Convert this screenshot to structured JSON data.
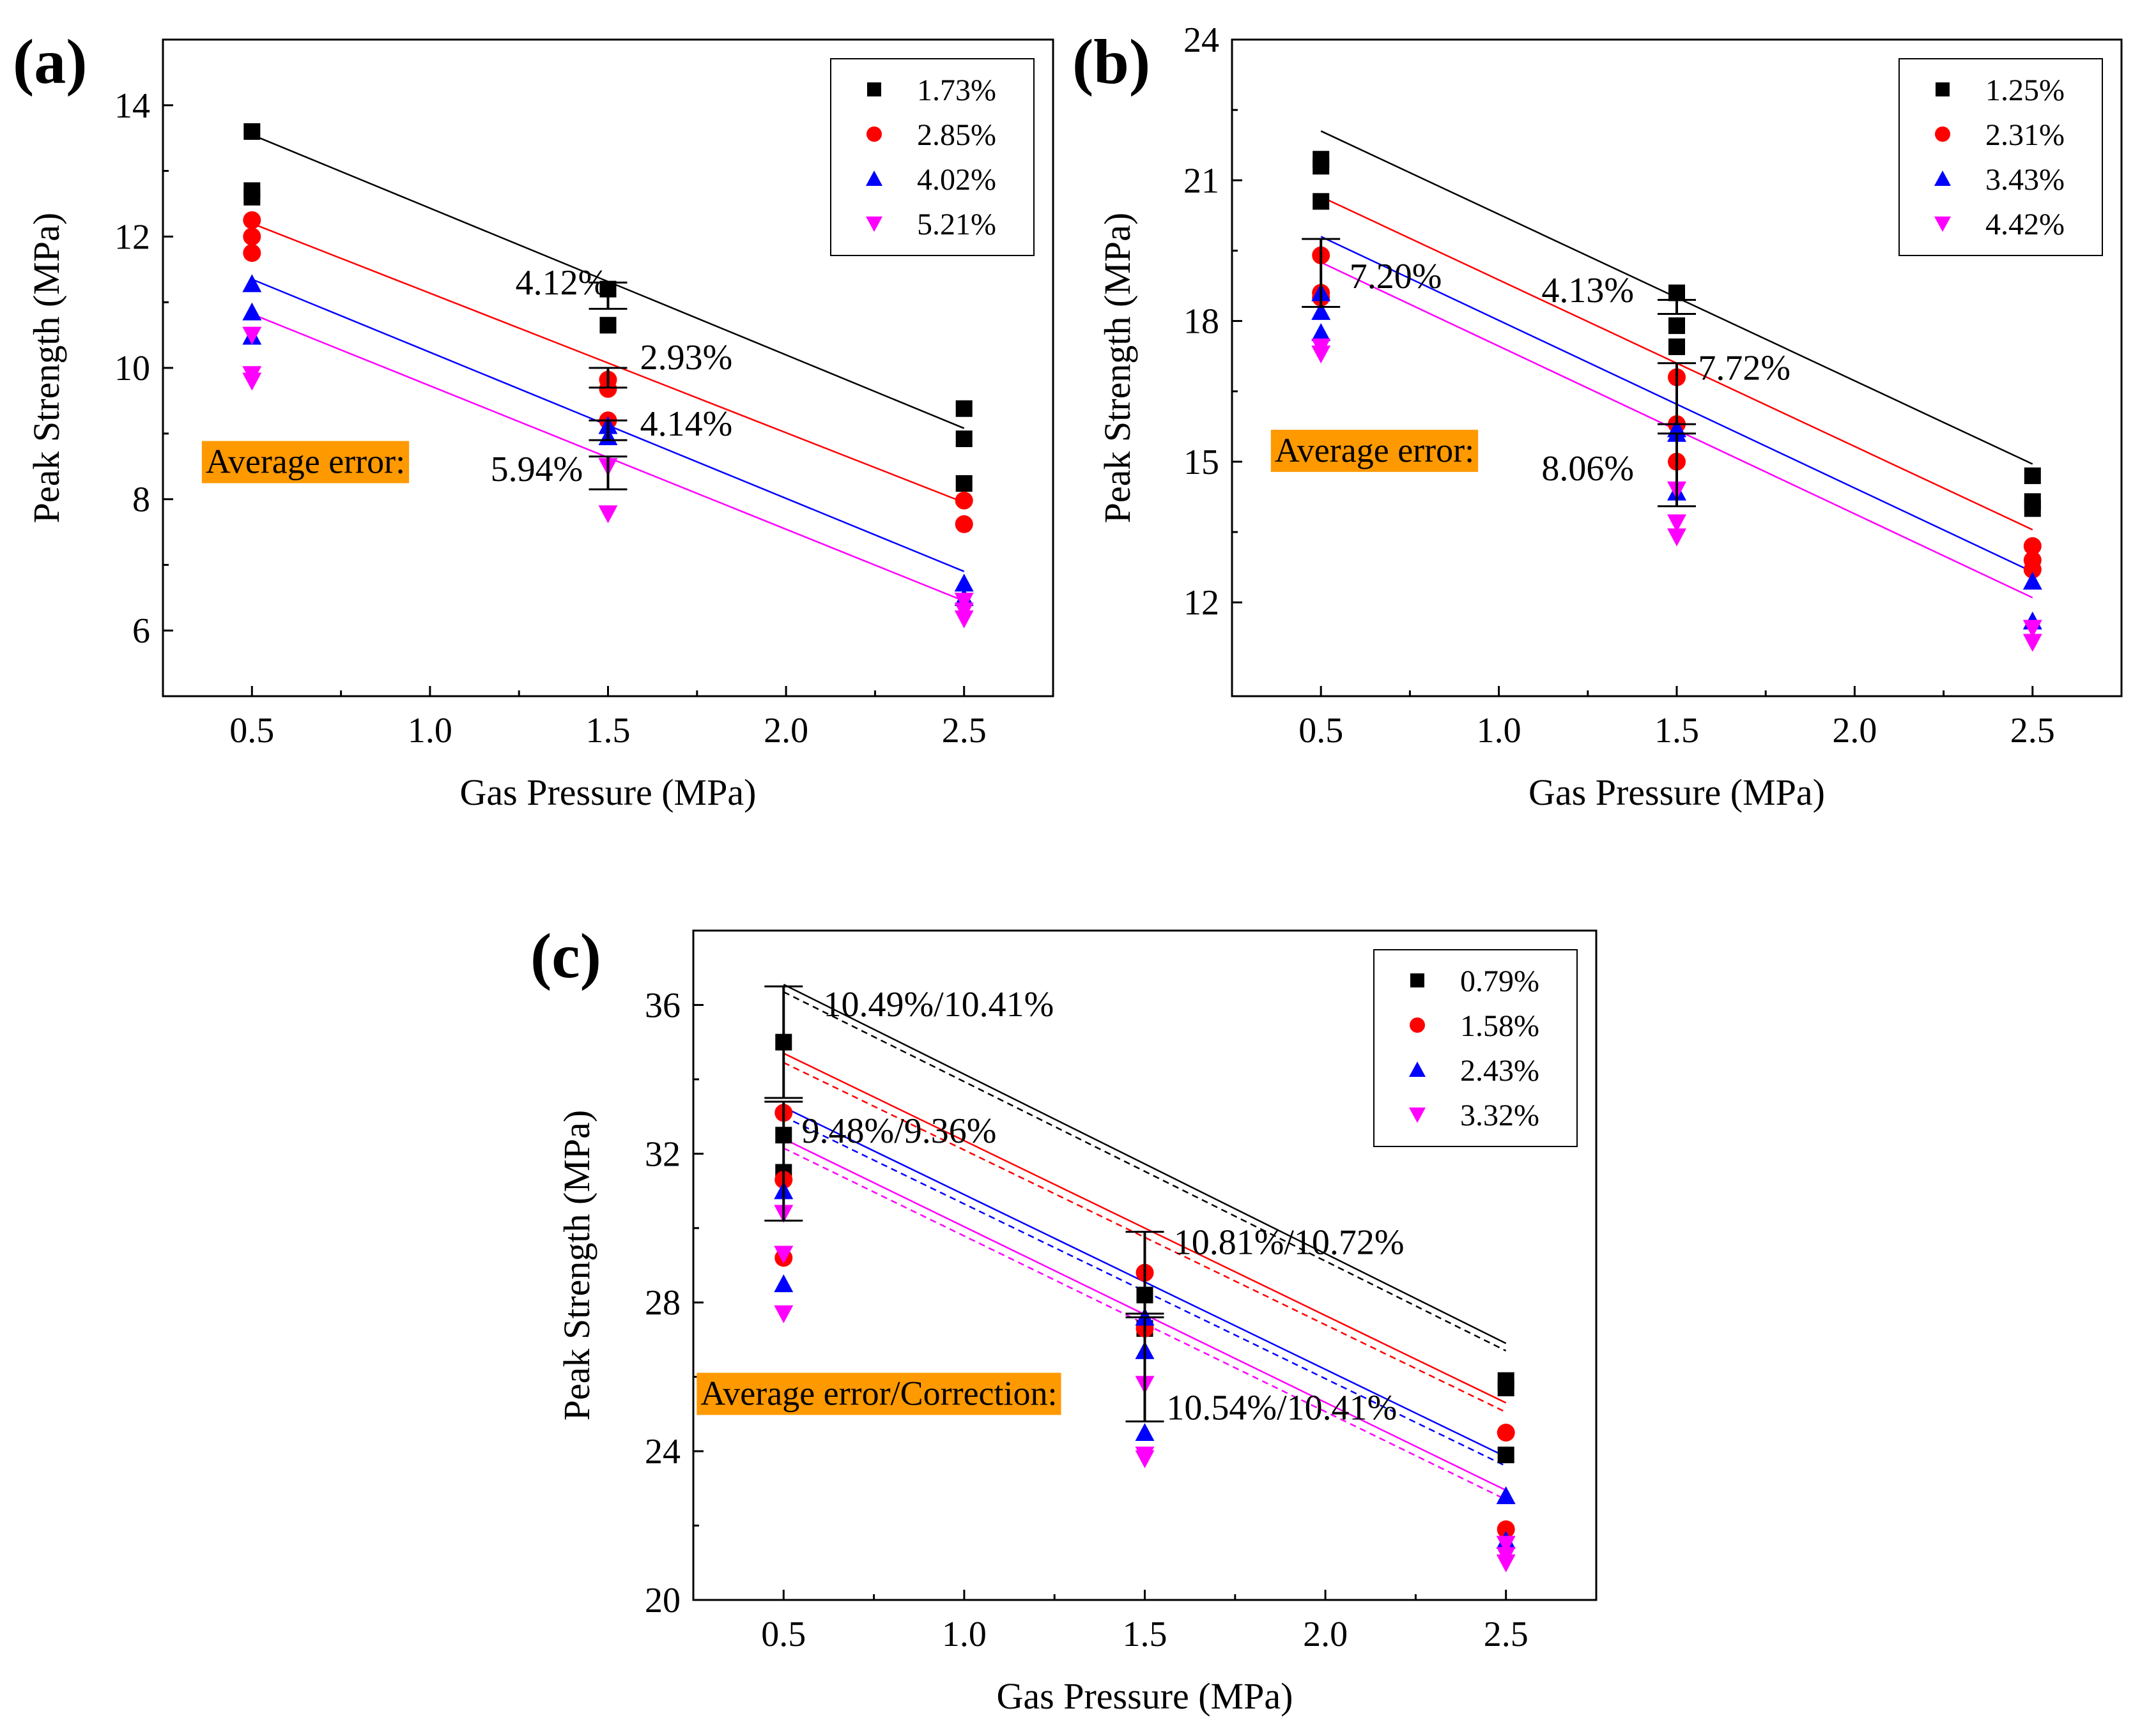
{
  "colors": {
    "black": "#000000",
    "red": "#ff0000",
    "blue": "#0000ff",
    "magenta": "#ff00ff",
    "error_box": "#ff9900",
    "frame": "#000000"
  },
  "chart_data": [
    {
      "panel_label": "(a)",
      "type": "scatter",
      "xlabel": "Gas Pressure (MPa)",
      "ylabel": "Peak Strength (MPa)",
      "xlim": [
        0.25,
        2.75
      ],
      "ylim": [
        5,
        15
      ],
      "xticks": [
        0.5,
        1.0,
        1.5,
        2.0,
        2.5
      ],
      "xtick_labels": [
        "0.5",
        "1.0",
        "1.5",
        "2.0",
        "2.5"
      ],
      "yticks": [
        6,
        8,
        10,
        12,
        14
      ],
      "ytick_labels": [
        "6",
        "8",
        "10",
        "12",
        "14"
      ],
      "legend_position": "top-right",
      "series": [
        {
          "name": "1.73%",
          "marker": "square",
          "color": "#000000",
          "points": [
            [
              0.5,
              13.6
            ],
            [
              0.5,
              12.7
            ],
            [
              0.5,
              12.6
            ],
            [
              1.5,
              11.2
            ],
            [
              1.5,
              10.65
            ],
            [
              2.5,
              9.38
            ],
            [
              2.5,
              8.92
            ],
            [
              2.5,
              8.24
            ]
          ],
          "fit": [
            [
              0.5,
              13.55
            ],
            [
              2.5,
              9.08
            ]
          ]
        },
        {
          "name": "2.85%",
          "marker": "circle",
          "color": "#ff0000",
          "points": [
            [
              0.5,
              12.25
            ],
            [
              0.5,
              12.0
            ],
            [
              0.5,
              11.75
            ],
            [
              1.5,
              9.82
            ],
            [
              1.5,
              9.68
            ],
            [
              1.5,
              9.2
            ],
            [
              2.5,
              7.98
            ],
            [
              2.5,
              7.62
            ]
          ],
          "fit": [
            [
              0.5,
              12.2
            ],
            [
              2.5,
              7.95
            ]
          ]
        },
        {
          "name": "4.02%",
          "marker": "triangle-up",
          "color": "#0000ff",
          "points": [
            [
              0.5,
              11.28
            ],
            [
              0.5,
              10.85
            ],
            [
              0.5,
              10.48
            ],
            [
              1.5,
              9.12
            ],
            [
              1.5,
              8.95
            ],
            [
              2.5,
              6.72
            ],
            [
              2.5,
              6.5
            ]
          ],
          "fit": [
            [
              0.5,
              11.35
            ],
            [
              2.5,
              6.9
            ]
          ]
        },
        {
          "name": "5.21%",
          "marker": "triangle-down",
          "color": "#ff00ff",
          "points": [
            [
              0.5,
              10.5
            ],
            [
              0.5,
              9.9
            ],
            [
              0.5,
              9.8
            ],
            [
              1.5,
              8.5
            ],
            [
              1.5,
              7.78
            ],
            [
              2.5,
              6.45
            ],
            [
              2.5,
              6.3
            ],
            [
              2.5,
              6.18
            ]
          ],
          "fit": [
            [
              0.5,
              10.82
            ],
            [
              2.5,
              6.45
            ]
          ]
        }
      ],
      "error_bars": [
        {
          "x": 1.5,
          "low": 10.9,
          "high": 11.3
        },
        {
          "x": 1.5,
          "low": 9.7,
          "high": 10.0
        },
        {
          "x": 1.5,
          "low": 8.9,
          "high": 9.2
        },
        {
          "x": 1.5,
          "low": 8.15,
          "high": 8.65
        }
      ],
      "annotations": [
        {
          "text": "4.12%",
          "x": 1.24,
          "y": 11.12
        },
        {
          "text": "2.93%",
          "x": 1.59,
          "y": 9.98
        },
        {
          "text": "4.14%",
          "x": 1.59,
          "y": 8.97
        },
        {
          "text": "5.94%",
          "x": 1.17,
          "y": 8.28
        }
      ],
      "error_label": "Average error:",
      "error_label_pos": [
        0.37,
        8.4
      ]
    },
    {
      "panel_label": "(b)",
      "type": "scatter",
      "xlabel": "Gas Pressure (MPa)",
      "ylabel": "Peak Strength (MPa)",
      "xlim": [
        0.25,
        2.75
      ],
      "ylim": [
        10,
        24
      ],
      "xticks": [
        0.5,
        1.0,
        1.5,
        2.0,
        2.5
      ],
      "xtick_labels": [
        "0.5",
        "1.0",
        "1.5",
        "2.0",
        "2.5"
      ],
      "yticks": [
        12,
        15,
        18,
        21,
        24
      ],
      "ytick_labels": [
        "12",
        "15",
        "18",
        "21",
        "24"
      ],
      "legend_position": "top-right",
      "series": [
        {
          "name": "1.25%",
          "marker": "square",
          "color": "#000000",
          "points": [
            [
              0.5,
              21.45
            ],
            [
              0.5,
              21.3
            ],
            [
              0.5,
              20.55
            ],
            [
              1.5,
              18.6
            ],
            [
              1.5,
              17.9
            ],
            [
              1.5,
              17.45
            ],
            [
              2.5,
              14.7
            ],
            [
              2.5,
              14.15
            ],
            [
              2.5,
              14.0
            ]
          ],
          "fit": [
            [
              0.5,
              22.05
            ],
            [
              2.5,
              14.95
            ]
          ]
        },
        {
          "name": "2.31%",
          "marker": "circle",
          "color": "#ff0000",
          "points": [
            [
              0.5,
              19.4
            ],
            [
              0.5,
              18.6
            ],
            [
              0.5,
              18.5
            ],
            [
              1.5,
              16.8
            ],
            [
              1.5,
              15.8
            ],
            [
              1.5,
              15.0
            ],
            [
              2.5,
              13.2
            ],
            [
              2.5,
              12.9
            ],
            [
              2.5,
              12.7
            ]
          ],
          "fit": [
            [
              0.5,
              20.65
            ],
            [
              2.5,
              13.55
            ]
          ]
        },
        {
          "name": "3.43%",
          "marker": "triangle-up",
          "color": "#0000ff",
          "points": [
            [
              0.5,
              18.6
            ],
            [
              0.5,
              18.2
            ],
            [
              0.5,
              17.75
            ],
            [
              1.5,
              15.7
            ],
            [
              1.5,
              15.6
            ],
            [
              1.5,
              14.35
            ],
            [
              2.5,
              12.45
            ],
            [
              2.5,
              11.6
            ]
          ],
          "fit": [
            [
              0.5,
              19.8
            ],
            [
              2.5,
              12.65
            ]
          ]
        },
        {
          "name": "4.42%",
          "marker": "triangle-down",
          "color": "#ff00ff",
          "points": [
            [
              0.5,
              17.45
            ],
            [
              0.5,
              17.3
            ],
            [
              1.5,
              14.4
            ],
            [
              1.5,
              13.7
            ],
            [
              1.5,
              13.4
            ],
            [
              2.5,
              11.45
            ],
            [
              2.5,
              11.15
            ]
          ],
          "fit": [
            [
              0.5,
              19.25
            ],
            [
              2.5,
              12.1
            ]
          ]
        }
      ],
      "error_bars": [
        {
          "x": 0.5,
          "low": 18.3,
          "high": 19.75
        },
        {
          "x": 1.5,
          "low": 18.15,
          "high": 18.45
        },
        {
          "x": 1.5,
          "low": 15.8,
          "high": 17.1
        },
        {
          "x": 1.5,
          "low": 14.05,
          "high": 15.6
        }
      ],
      "annotations": [
        {
          "text": "7.20%",
          "x": 0.58,
          "y": 18.7
        },
        {
          "text": "4.13%",
          "x": 1.12,
          "y": 18.4
        },
        {
          "text": "7.72%",
          "x": 1.56,
          "y": 16.75
        },
        {
          "text": "8.06%",
          "x": 1.12,
          "y": 14.6
        }
      ],
      "error_label": "Average error:",
      "error_label_pos": [
        0.37,
        15.0
      ]
    },
    {
      "panel_label": "(c)",
      "type": "scatter",
      "xlabel": "Gas Pressure (MPa)",
      "ylabel": "Peak Strength (MPa)",
      "xlim": [
        0.25,
        2.75
      ],
      "ylim": [
        20,
        38
      ],
      "xticks": [
        0.5,
        1.0,
        1.5,
        2.0,
        2.5
      ],
      "xtick_labels": [
        "0.5",
        "1.0",
        "1.5",
        "2.0",
        "2.5"
      ],
      "yticks": [
        20,
        24,
        28,
        32,
        36
      ],
      "ytick_labels": [
        "20",
        "24",
        "28",
        "32",
        "36"
      ],
      "legend_position": "top-right",
      "series": [
        {
          "name": "0.79%",
          "marker": "square",
          "color": "#000000",
          "points": [
            [
              0.5,
              35.0
            ],
            [
              0.5,
              32.5
            ],
            [
              0.5,
              31.5
            ],
            [
              1.5,
              28.2
            ],
            [
              1.5,
              27.3
            ],
            [
              2.5,
              25.9
            ],
            [
              2.5,
              25.7
            ],
            [
              2.5,
              23.9
            ]
          ],
          "fit": [
            [
              0.5,
              36.55
            ],
            [
              2.5,
              26.9
            ]
          ],
          "fit_corrected": [
            [
              0.5,
              36.35
            ],
            [
              2.5,
              26.7
            ]
          ]
        },
        {
          "name": "1.58%",
          "marker": "circle",
          "color": "#ff0000",
          "points": [
            [
              0.5,
              33.1
            ],
            [
              0.5,
              31.3
            ],
            [
              0.5,
              29.2
            ],
            [
              1.5,
              28.8
            ],
            [
              1.5,
              27.3
            ],
            [
              2.5,
              24.5
            ],
            [
              2.5,
              21.9
            ]
          ],
          "fit": [
            [
              0.5,
              34.7
            ],
            [
              2.5,
              25.3
            ]
          ],
          "fit_corrected": [
            [
              0.5,
              34.45
            ],
            [
              2.5,
              25.05
            ]
          ]
        },
        {
          "name": "2.43%",
          "marker": "triangle-up",
          "color": "#0000ff",
          "points": [
            [
              0.5,
              31.0
            ],
            [
              0.5,
              28.5
            ],
            [
              1.5,
              27.6
            ],
            [
              1.5,
              26.7
            ],
            [
              1.5,
              24.5
            ],
            [
              2.5,
              22.8
            ],
            [
              2.5,
              21.6
            ]
          ],
          "fit": [
            [
              0.5,
              33.25
            ],
            [
              2.5,
              23.85
            ]
          ],
          "fit_corrected": [
            [
              0.5,
              33.0
            ],
            [
              2.5,
              23.6
            ]
          ]
        },
        {
          "name": "3.32%",
          "marker": "triangle-down",
          "color": "#ff00ff",
          "points": [
            [
              0.5,
              30.4
            ],
            [
              0.5,
              29.3
            ],
            [
              0.5,
              27.7
            ],
            [
              1.5,
              25.8
            ],
            [
              1.5,
              23.9
            ],
            [
              1.5,
              23.8
            ],
            [
              2.5,
              21.5
            ],
            [
              2.5,
              21.2
            ],
            [
              2.5,
              21.0
            ]
          ],
          "fit": [
            [
              0.5,
              32.4
            ],
            [
              2.5,
              22.95
            ]
          ],
          "fit_corrected": [
            [
              0.5,
              32.15
            ],
            [
              2.5,
              22.7
            ]
          ]
        }
      ],
      "error_bars": [
        {
          "x": 0.5,
          "low": 33.5,
          "high": 36.5
        },
        {
          "x": 0.5,
          "low": 30.2,
          "high": 33.4
        },
        {
          "x": 1.5,
          "low": 27.7,
          "high": 29.9
        },
        {
          "x": 1.5,
          "low": 24.8,
          "high": 27.6
        }
      ],
      "annotations": [
        {
          "text": "10.49%/10.41%",
          "x": 0.61,
          "y": 35.7
        },
        {
          "text": "9.48%/9.36%",
          "x": 0.55,
          "y": 32.3
        },
        {
          "text": "10.81%/10.72%",
          "x": 1.58,
          "y": 29.3
        },
        {
          "text": "10.54%/10.41%",
          "x": 1.56,
          "y": 24.85
        }
      ],
      "error_label": "Average error/Correction:",
      "error_label_pos": [
        0.27,
        25.25
      ]
    }
  ]
}
